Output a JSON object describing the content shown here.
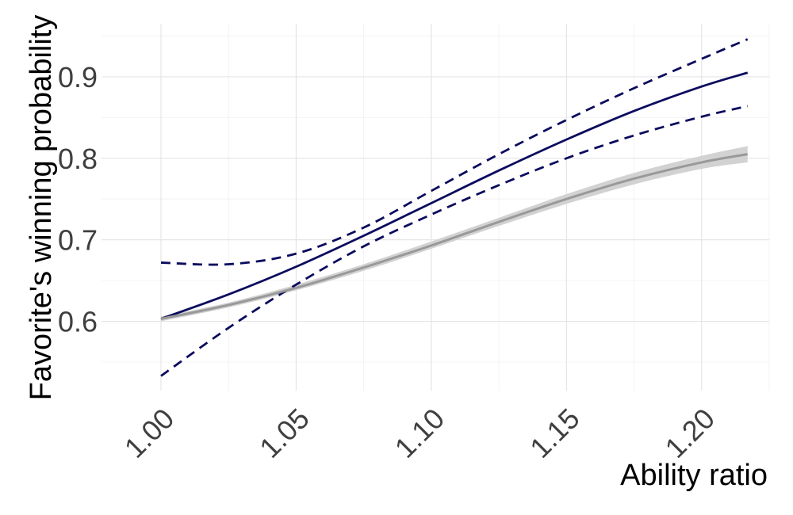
{
  "chart_data": {
    "type": "line",
    "title": "",
    "xlabel": "Ability ratio",
    "ylabel": "Favorite's winning probability",
    "xlim": [
      0.978,
      1.225
    ],
    "ylim": [
      0.515,
      0.965
    ],
    "x_ticks": [
      1.0,
      1.05,
      1.1,
      1.15,
      1.2
    ],
    "x_tick_labels": [
      "1.00",
      "1.05",
      "1.10",
      "1.15",
      "1.20"
    ],
    "y_ticks": [
      0.6,
      0.7,
      0.8,
      0.9
    ],
    "y_tick_labels": [
      "0.6",
      "0.7",
      "0.8",
      "0.9"
    ],
    "x_minor_ticks": [
      1.025,
      1.075,
      1.125,
      1.175,
      1.225
    ],
    "y_minor_ticks": [
      0.55,
      0.65,
      0.75,
      0.85,
      0.95
    ],
    "grid": true,
    "x": [
      1.0,
      1.025,
      1.05,
      1.075,
      1.1,
      1.125,
      1.15,
      1.175,
      1.2,
      1.217
    ],
    "series": [
      {
        "style": "solid",
        "color": "#0b0b5e",
        "values": [
          0.603,
          0.633,
          0.667,
          0.705,
          0.745,
          0.785,
          0.823,
          0.858,
          0.888,
          0.905
        ]
      },
      {
        "style": "dashed",
        "color": "#0b0b5e",
        "values": [
          0.672,
          0.67,
          0.683,
          0.715,
          0.76,
          0.805,
          0.847,
          0.886,
          0.922,
          0.946
        ]
      },
      {
        "style": "dashed",
        "color": "#0b0b5e",
        "values": [
          0.533,
          0.592,
          0.645,
          0.692,
          0.731,
          0.767,
          0.8,
          0.828,
          0.851,
          0.864
        ]
      },
      {
        "style": "solid",
        "color": "#999999",
        "band_color": "#d2d2d2",
        "values": [
          0.603,
          0.62,
          0.641,
          0.666,
          0.693,
          0.722,
          0.75,
          0.775,
          0.795,
          0.805
        ],
        "band_lower": [
          0.6,
          0.617,
          0.638,
          0.662,
          0.689,
          0.717,
          0.744,
          0.768,
          0.787,
          0.795
        ],
        "band_upper": [
          0.606,
          0.623,
          0.645,
          0.67,
          0.698,
          0.727,
          0.756,
          0.782,
          0.803,
          0.815
        ]
      }
    ]
  }
}
